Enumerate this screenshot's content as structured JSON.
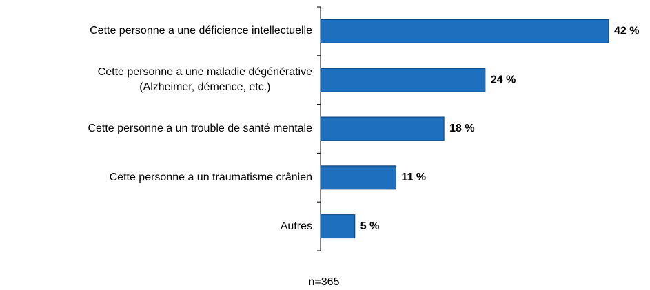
{
  "chart_data": {
    "type": "bar",
    "orientation": "horizontal",
    "categories": [
      "Cette personne a une déficience intellectuelle",
      "Cette personne a une maladie dégénérative\n(Alzheimer, démence, etc.)",
      "Cette personne a un trouble de santé mentale",
      "Cette personne a un traumatisme crânien",
      "Autres"
    ],
    "values": [
      42,
      24,
      18,
      11,
      5
    ],
    "value_labels": [
      "42 %",
      "24 %",
      "18 %",
      "11 %",
      "5 %"
    ],
    "color": "#1f6fbf",
    "footnote": "n=365"
  }
}
